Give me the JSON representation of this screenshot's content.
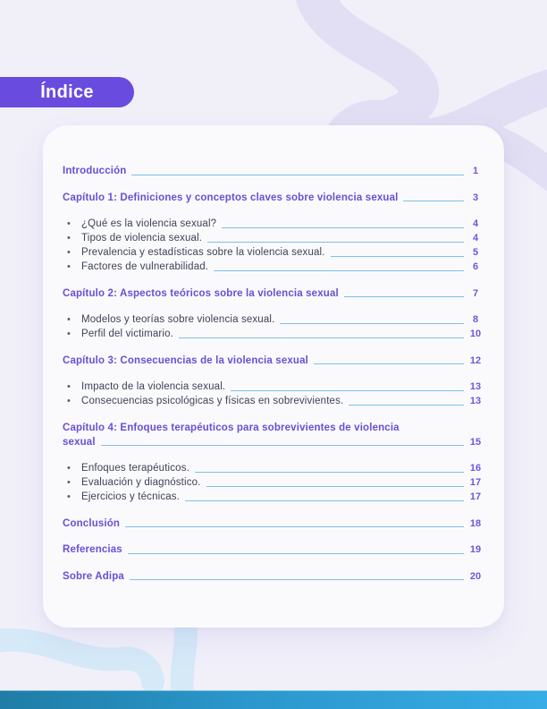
{
  "badge": {
    "label": "Índice"
  },
  "toc": {
    "groups": [
      {
        "rows": [
          {
            "kind": "section",
            "label": "Introducción",
            "page": "1"
          }
        ]
      },
      {
        "rows": [
          {
            "kind": "section",
            "label": "Capítulo 1: Definiciones y conceptos claves sobre violencia sexual",
            "page": "3"
          }
        ]
      },
      {
        "rows": [
          {
            "kind": "item",
            "label": "¿Qué es la violencia sexual?",
            "page": "4"
          },
          {
            "kind": "item",
            "label": "Tipos de violencia sexual.",
            "page": "4"
          },
          {
            "kind": "item",
            "label": "Prevalencia y estadísticas sobre la violencia sexual.",
            "page": "5"
          },
          {
            "kind": "item",
            "label": "Factores de vulnerabilidad.",
            "page": "6"
          }
        ]
      },
      {
        "rows": [
          {
            "kind": "section",
            "label": "Capítulo 2: Aspectos teóricos sobre la violencia sexual",
            "page": "7"
          }
        ]
      },
      {
        "rows": [
          {
            "kind": "item",
            "label": "Modelos y teorías sobre violencia sexual.",
            "page": "8"
          },
          {
            "kind": "item",
            "label": "Perfil del victimario.",
            "page": "10"
          }
        ]
      },
      {
        "rows": [
          {
            "kind": "section",
            "label": "Capítulo 3: Consecuencias de la violencia sexual",
            "page": "12"
          }
        ]
      },
      {
        "rows": [
          {
            "kind": "item",
            "label": "Impacto de la violencia sexual.",
            "page": "13"
          },
          {
            "kind": "item",
            "label": "Consecuencias psicológicas y físicas en sobrevivientes.",
            "page": "13"
          }
        ]
      },
      {
        "rows": [
          {
            "kind": "section2",
            "label_line1": "Capítulo 4: Enfoques terapéuticos para sobrevivientes de violencia",
            "label_line2": "sexual",
            "page": "15"
          }
        ]
      },
      {
        "rows": [
          {
            "kind": "item",
            "label": "Enfoques terapéuticos.",
            "page": "16"
          },
          {
            "kind": "item",
            "label": "Evaluación y diagnóstico.",
            "page": "17"
          },
          {
            "kind": "item",
            "label": "Ejercicios y técnicas.",
            "page": "17"
          }
        ]
      },
      {
        "rows": [
          {
            "kind": "section",
            "label": "Conclusión",
            "page": "18"
          }
        ]
      },
      {
        "rows": [
          {
            "kind": "section",
            "label": "Referencias",
            "page": "19"
          }
        ]
      },
      {
        "rows": [
          {
            "kind": "section",
            "label": "Sobre Adipa",
            "page": "20"
          }
        ]
      }
    ]
  },
  "icons": {
    "bullet_glyph": "•"
  },
  "colors": {
    "page_background": "#f1f0f9",
    "card_background": "#fafafd",
    "badge_purple": "#6a4be0",
    "heading_purple": "#6a4fd4",
    "page_number_purple": "#6a58da",
    "body_text": "#3e4254",
    "leader_blue": "#66b4e4",
    "ribbon_top_lavender": "#e2def3",
    "ribbon_bottom_blue": "#d5e9f7",
    "bar_gradient_left": "#1f7da6",
    "bar_gradient_right": "#38ace6"
  }
}
